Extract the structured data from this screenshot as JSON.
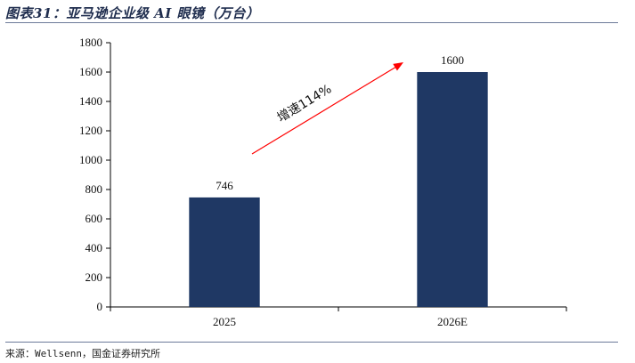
{
  "title": "图表31：亚马逊企业级 AI 眼镜（万台）",
  "source": "来源：Wellsenn，国金证券研究所",
  "chart_data": {
    "type": "bar",
    "categories": [
      "2025",
      "2026E"
    ],
    "values": [
      746,
      1600
    ],
    "value_labels": [
      "746",
      "1600"
    ],
    "ylim": [
      0,
      1800
    ],
    "yticks": [
      0,
      200,
      400,
      600,
      800,
      1000,
      1200,
      1400,
      1600,
      1800
    ],
    "grid": false,
    "bar_color": "#1f3864",
    "annotation": {
      "text": "增速114%",
      "arrow_color": "#ff0000"
    }
  }
}
